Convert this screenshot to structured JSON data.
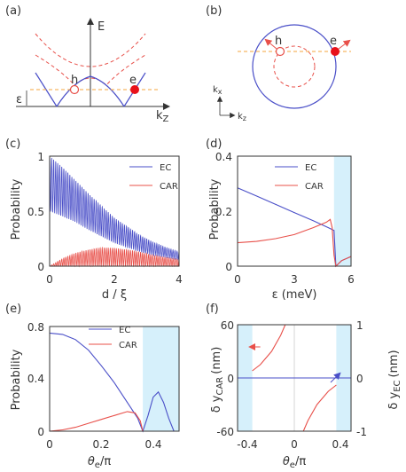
{
  "colors": {
    "blue": "#4a4fc8",
    "red": "#e8504a",
    "orange": "#f6a43c",
    "shade": "#d6f0fb",
    "axis": "#333333",
    "grid": "#bbbbbb"
  },
  "chart_data": [
    {
      "id": "a",
      "type": "line",
      "panel_label": "(a)",
      "ylabel": "E",
      "xlabel": "k",
      "xlabel_sub": "Z",
      "annotations": [
        "h",
        "e",
        "ε"
      ]
    },
    {
      "id": "b",
      "type": "diagram",
      "panel_label": "(b)",
      "annotations": [
        "h",
        "e"
      ],
      "axes": [
        "k",
        "k"
      ],
      "axes_sub": [
        "x",
        "z"
      ]
    },
    {
      "id": "c",
      "type": "line",
      "panel_label": "(c)",
      "ylabel": "Probability",
      "xlabel": "d / ξ",
      "xlim": [
        0,
        4
      ],
      "ylim": [
        0,
        1
      ],
      "xticks": [
        "0",
        "2",
        "4"
      ],
      "yticks": [
        "0",
        "0.5",
        "1"
      ],
      "legend": "top-right",
      "series": [
        {
          "name": "EC",
          "color": "blue",
          "envelope_upper": [
            1.0,
            0.9,
            0.78,
            0.66,
            0.55,
            0.44,
            0.36,
            0.28,
            0.22,
            0.17,
            0.13
          ],
          "envelope_lower": [
            0.5,
            0.45,
            0.4,
            0.33,
            0.27,
            0.21,
            0.17,
            0.13,
            0.1,
            0.08,
            0.06
          ],
          "x": [
            0,
            0.4,
            0.8,
            1.2,
            1.6,
            2.0,
            2.4,
            2.8,
            3.2,
            3.6,
            4.0
          ]
        },
        {
          "name": "CAR",
          "color": "red",
          "envelope_upper": [
            0.0,
            0.07,
            0.12,
            0.15,
            0.17,
            0.165,
            0.15,
            0.13,
            0.1,
            0.08,
            0.06
          ],
          "envelope_lower": [
            0,
            0,
            0,
            0,
            0,
            0,
            0,
            0,
            0,
            0,
            0
          ],
          "x": [
            0,
            0.4,
            0.8,
            1.2,
            1.6,
            2.0,
            2.4,
            2.8,
            3.2,
            3.6,
            4.0
          ]
        }
      ]
    },
    {
      "id": "d",
      "type": "line",
      "panel_label": "(d)",
      "ylabel": "Probability",
      "xlabel": "ε (meV)",
      "xlim": [
        0,
        6
      ],
      "ylim": [
        0,
        0.4
      ],
      "xticks": [
        "0",
        "3",
        "6"
      ],
      "yticks": [
        "0",
        "0.2",
        "0.4"
      ],
      "shaded_x": [
        5.1,
        6
      ],
      "legend": "top-right",
      "series": [
        {
          "name": "EC",
          "color": "blue",
          "x": [
            0,
            1,
            2,
            3,
            4,
            4.8,
            5.1,
            5.2,
            5.5,
            6
          ],
          "y": [
            0.285,
            0.255,
            0.225,
            0.195,
            0.165,
            0.14,
            0.13,
            0.0,
            0.02,
            0.035
          ]
        },
        {
          "name": "CAR",
          "color": "red",
          "x": [
            0,
            1,
            2,
            3,
            4,
            4.7,
            4.9,
            5.0,
            5.1,
            5.2,
            5.5,
            6
          ],
          "y": [
            0.085,
            0.09,
            0.1,
            0.115,
            0.14,
            0.16,
            0.17,
            0.14,
            0.04,
            0.0,
            0.02,
            0.035
          ]
        }
      ]
    },
    {
      "id": "e",
      "type": "line",
      "panel_label": "(e)",
      "ylabel": "Probability",
      "xlabel": "θ",
      "xlabel_sub": "e",
      "xlabel_tail": "/π",
      "xlim": [
        0,
        0.5
      ],
      "ylim": [
        0,
        0.8
      ],
      "xticks": [
        "0",
        "0.2",
        "0.4"
      ],
      "yticks": [
        "0",
        "0.4",
        "0.8"
      ],
      "shaded_x": [
        0.36,
        0.5
      ],
      "legend": "top-right",
      "series": [
        {
          "name": "EC",
          "color": "blue",
          "x": [
            0,
            0.05,
            0.1,
            0.15,
            0.2,
            0.25,
            0.3,
            0.34,
            0.36,
            0.38,
            0.4,
            0.42,
            0.44,
            0.46,
            0.48
          ],
          "y": [
            0.75,
            0.74,
            0.7,
            0.62,
            0.5,
            0.37,
            0.22,
            0.1,
            0.0,
            0.12,
            0.26,
            0.3,
            0.22,
            0.1,
            0.0
          ]
        },
        {
          "name": "CAR",
          "color": "red",
          "x": [
            0,
            0.05,
            0.1,
            0.15,
            0.2,
            0.25,
            0.3,
            0.33,
            0.35,
            0.36,
            0.38,
            0.4,
            0.44,
            0.48
          ],
          "y": [
            0.0,
            0.01,
            0.03,
            0.06,
            0.09,
            0.12,
            0.15,
            0.14,
            0.08,
            0.0,
            0.0,
            0.0,
            0.0,
            0.0
          ]
        }
      ]
    },
    {
      "id": "f",
      "type": "line",
      "panel_label": "(f)",
      "ylabel": "δ y",
      "ylabel_sub": "CAR",
      "ylabel_unit": "(nm)",
      "y2label": "δ y",
      "y2label_sub": "EC",
      "y2label_unit": "(nm)",
      "xlabel": "θ",
      "xlabel_sub": "e",
      "xlabel_tail": "/π",
      "xlim": [
        -0.5,
        0.5
      ],
      "ylim": [
        -60,
        60
      ],
      "y2lim": [
        -1,
        1
      ],
      "xticks": [
        "-0.4",
        "0",
        "0.4"
      ],
      "yticks": [
        "-60",
        "0",
        "60"
      ],
      "y2ticks": [
        "-1",
        "0",
        "1"
      ],
      "shaded_x": [
        [
          -0.5,
          -0.37
        ],
        [
          0.37,
          0.5
        ]
      ],
      "series": [
        {
          "name": "CAR",
          "color": "red",
          "x": [
            -0.37,
            -0.3,
            -0.2,
            -0.12,
            -0.08
          ],
          "y": [
            8,
            15,
            30,
            48,
            60
          ]
        },
        {
          "name": "CAR",
          "color": "red",
          "x": [
            0.08,
            0.12,
            0.2,
            0.3,
            0.37
          ],
          "y": [
            -60,
            -48,
            -30,
            -15,
            -8
          ]
        },
        {
          "name": "EC",
          "color": "blue",
          "x": [
            -0.5,
            0.5
          ],
          "y": [
            0,
            0
          ]
        }
      ]
    }
  ]
}
